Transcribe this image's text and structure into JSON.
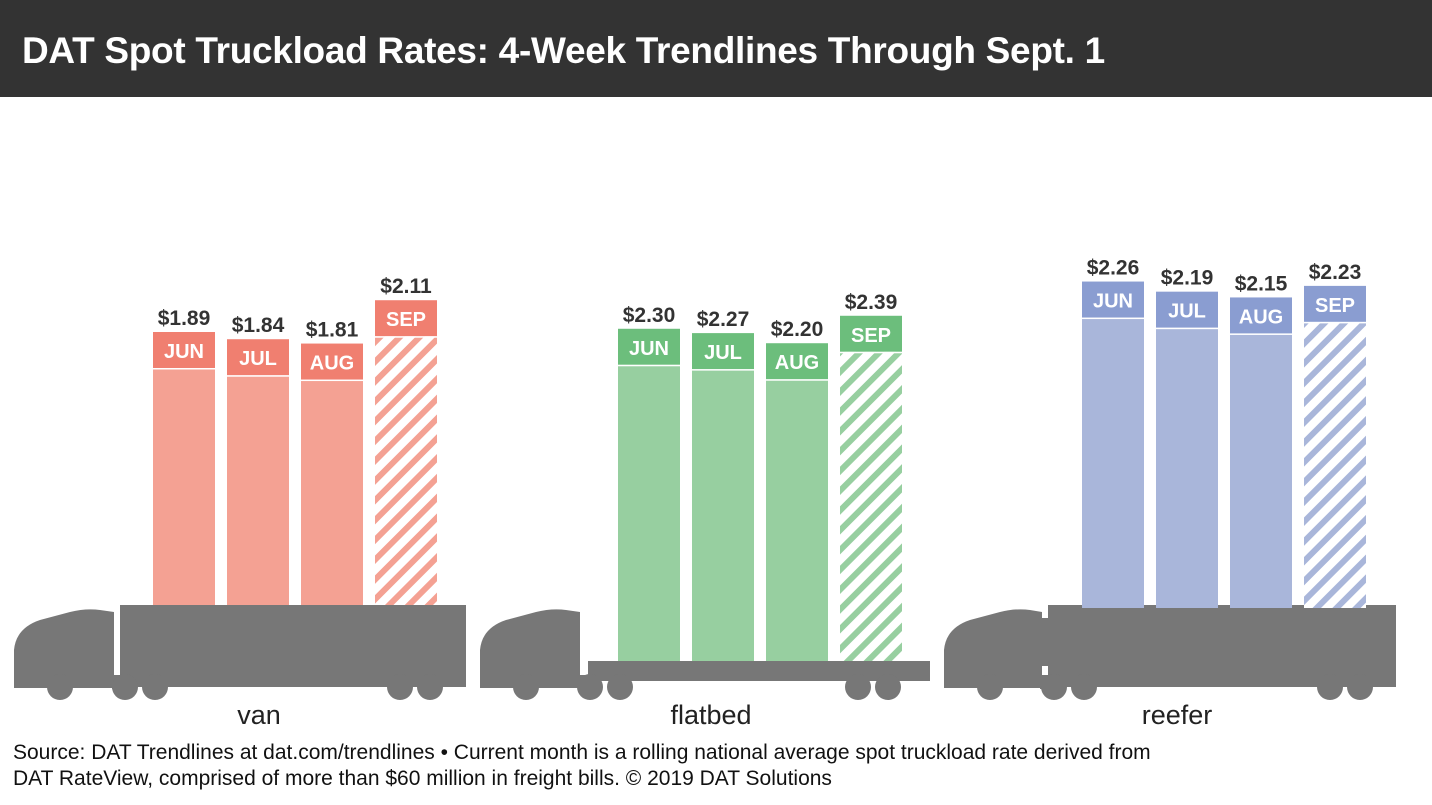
{
  "header": {
    "title": "DAT Spot Truckload Rates: 4-Week Trendlines Through Sept. 1",
    "background": "#333333"
  },
  "source": {
    "line1": "Source: DAT Trendlines at dat.com/trendlines • Current month is a rolling national average spot truckload rate derived from",
    "line2": "DAT RateView, comprised of more than $60 million in freight bills. © 2019 DAT Solutions"
  },
  "chart_data": {
    "type": "bar",
    "title": "DAT Spot Truckload Rates: 4-Week Trendlines Through Sept. 1",
    "categories": [
      "JUN",
      "JUL",
      "AUG",
      "SEP"
    ],
    "unit": "$ per mile",
    "hatched_category": "SEP",
    "series": [
      {
        "name": "van",
        "values": [
          1.89,
          1.84,
          1.81,
          2.11
        ],
        "labels": [
          "$1.89",
          "$1.84",
          "$1.81",
          "$2.11"
        ],
        "color": "#F4A193",
        "accent": "#F07F70"
      },
      {
        "name": "flatbed",
        "values": [
          2.3,
          2.27,
          2.2,
          2.39
        ],
        "labels": [
          "$2.30",
          "$2.27",
          "$2.20",
          "$2.39"
        ],
        "color": "#97CFA0",
        "accent": "#6CBE7C"
      },
      {
        "name": "reefer",
        "values": [
          2.26,
          2.19,
          2.15,
          2.23
        ],
        "labels": [
          "$2.26",
          "$2.19",
          "$2.15",
          "$2.23"
        ],
        "color": "#A9B6DA",
        "accent": "#8A9DD1"
      }
    ]
  }
}
